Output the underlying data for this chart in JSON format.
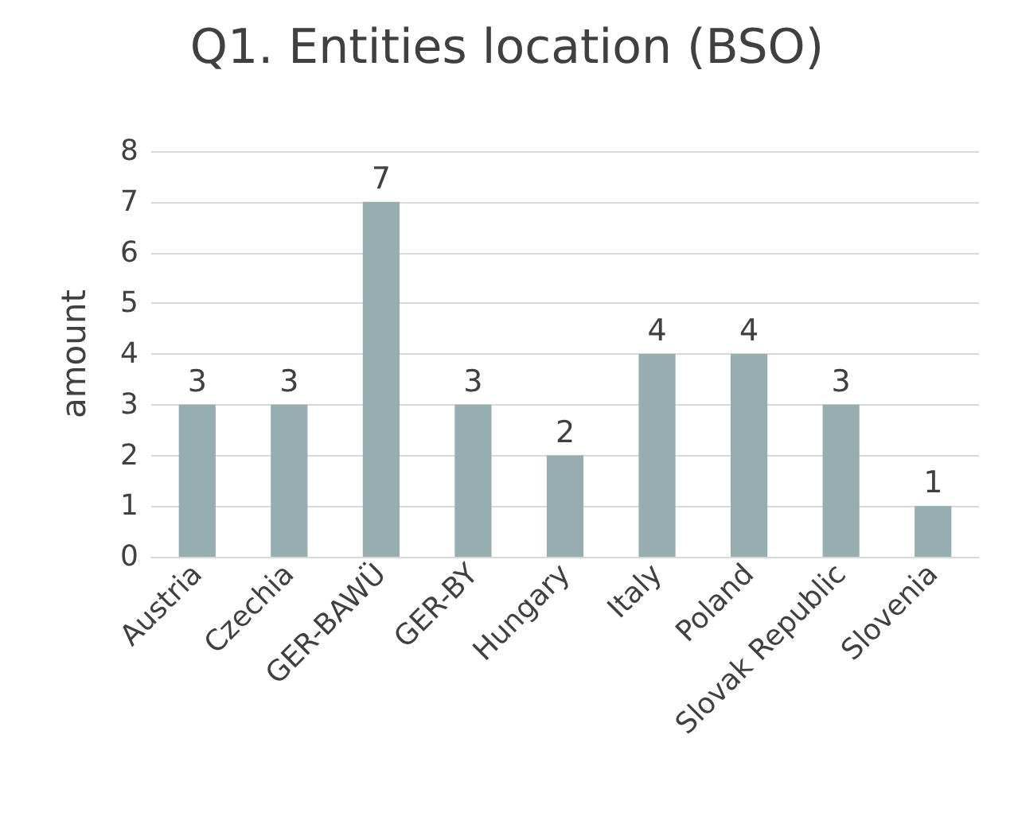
{
  "chart_data": {
    "type": "bar",
    "title": "Q1. Entities location (BSO)",
    "ylabel": "amount",
    "categories": [
      "Austria",
      "Czechia",
      "GER-BAWÜ",
      "GER-BY",
      "Hungary",
      "Italy",
      "Poland",
      "Slovak Republic",
      "Slovenia"
    ],
    "values": [
      3,
      3,
      7,
      3,
      2,
      4,
      4,
      3,
      1
    ],
    "color": "#97aeb1",
    "ylim": [
      0,
      8
    ],
    "yticks": [
      0,
      1,
      2,
      3,
      4,
      5,
      6,
      7,
      8
    ],
    "grid": "y",
    "data_labels": true
  }
}
